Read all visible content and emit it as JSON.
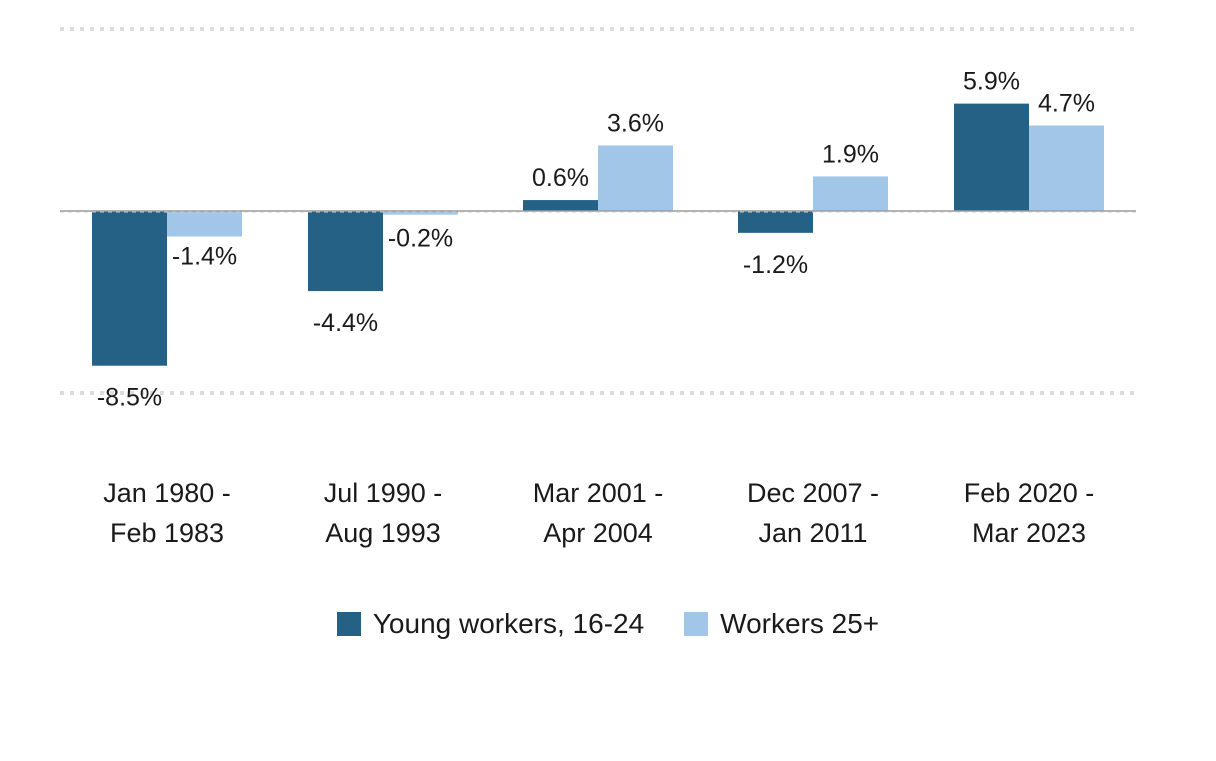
{
  "chart_data": {
    "type": "bar",
    "categories": [
      [
        "Jan 1980 -",
        "Feb 1983"
      ],
      [
        "Jul 1990 -",
        "Aug 1993"
      ],
      [
        "Mar 2001 -",
        "Apr 2004"
      ],
      [
        "Dec 2007 -",
        "Jan 2011"
      ],
      [
        "Feb 2020 -",
        "Mar 2023"
      ]
    ],
    "series": [
      {
        "name": "Young workers, 16-24",
        "values": [
          -8.5,
          -4.4,
          0.6,
          -1.2,
          5.9
        ],
        "labels": [
          "-8.5%",
          "-4.4%",
          "0.6%",
          "-1.2%",
          "5.9%"
        ],
        "color": "#246185"
      },
      {
        "name": "Workers 25+",
        "values": [
          -1.4,
          -0.2,
          3.6,
          1.9,
          4.7
        ],
        "labels": [
          "-1.4%",
          "-0.2%",
          "3.6%",
          "1.9%",
          "4.7%"
        ],
        "color": "#a1c6e8"
      }
    ],
    "ylim": [
      -10,
      10
    ],
    "gridlines": [
      -10,
      10
    ],
    "zero_line": true,
    "legend_position": "bottom",
    "value_suffix": "%"
  }
}
